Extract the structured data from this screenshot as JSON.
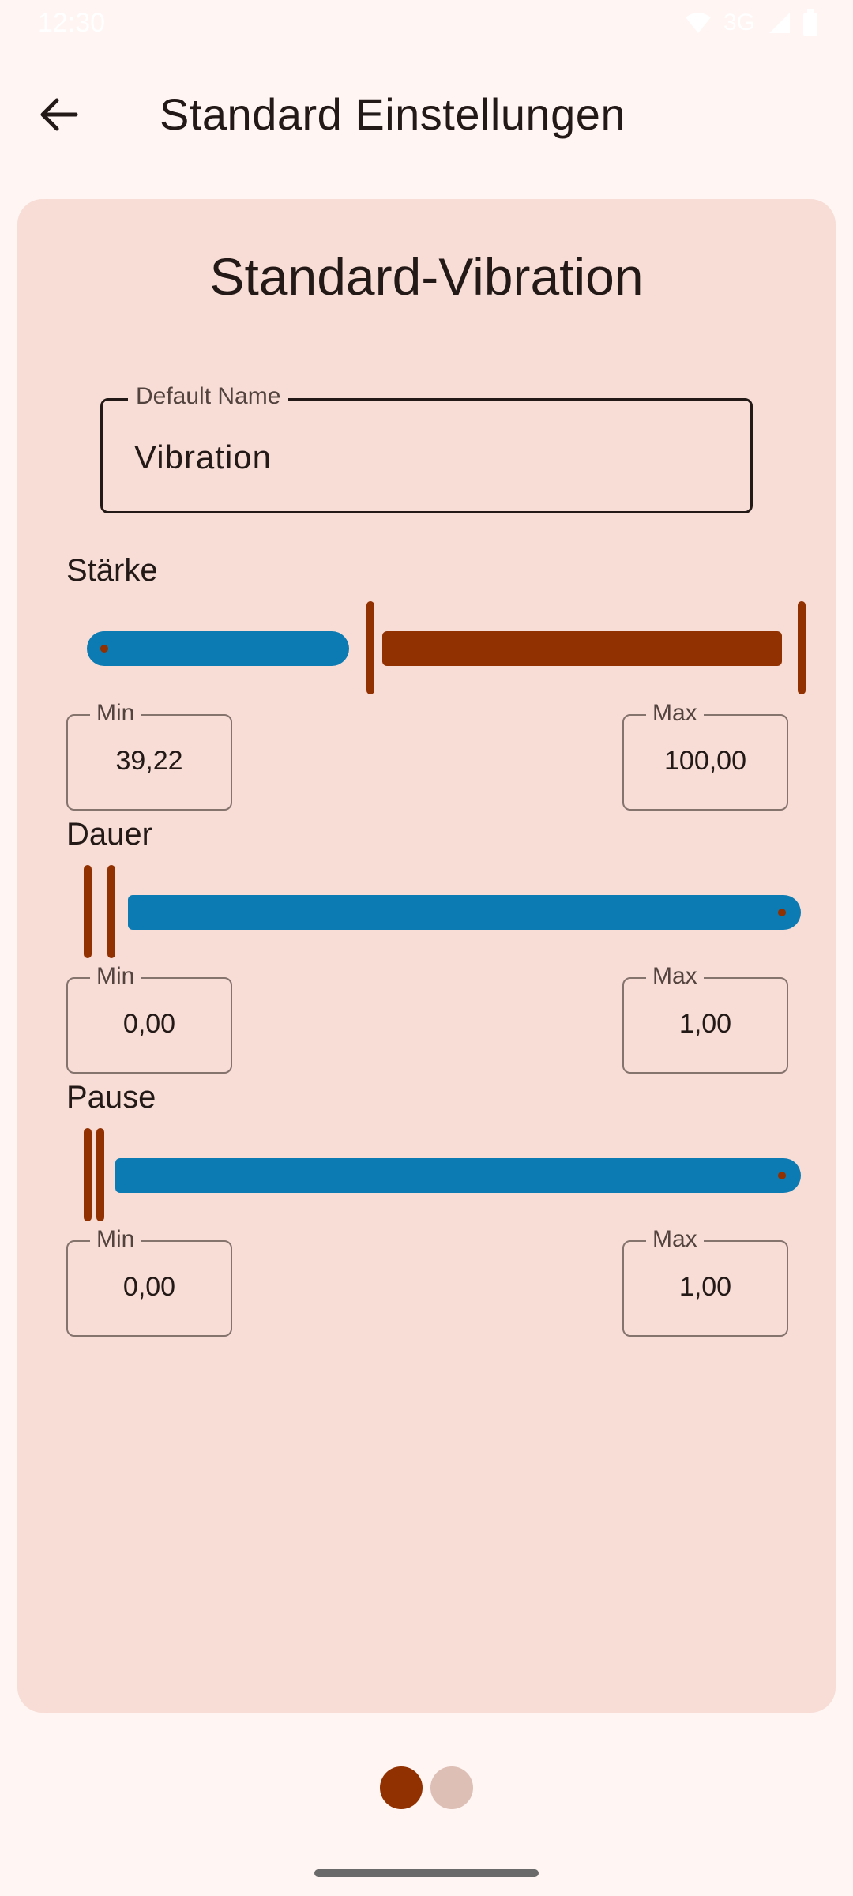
{
  "status_bar": {
    "time": "12:30",
    "network": "3G",
    "icons": [
      "wifi-icon",
      "signal-icon",
      "battery-icon"
    ]
  },
  "app_bar": {
    "title": "Standard Einstellungen",
    "back_icon": "arrow-left-icon"
  },
  "card": {
    "title": "Standard-Vibration",
    "name_field": {
      "label": "Default Name",
      "value": "Vibration"
    },
    "sections": [
      {
        "label": "Stärke",
        "min_label": "Min",
        "min_value": "39,22",
        "max_label": "Max",
        "max_value": "100,00",
        "range_fraction": [
          0.39,
          1.0
        ]
      },
      {
        "label": "Dauer",
        "min_label": "Min",
        "min_value": "0,00",
        "max_label": "Max",
        "max_value": "1,00",
        "range_fraction": [
          0.0,
          0.02
        ]
      },
      {
        "label": "Pause",
        "min_label": "Min",
        "min_value": "0,00",
        "max_label": "Max",
        "max_value": "1,00",
        "range_fraction": [
          0.0,
          0.01
        ]
      }
    ]
  },
  "pager": {
    "pages": 2,
    "active": 0
  },
  "colors": {
    "accent": "#913000",
    "track_active": "#0c7bb3",
    "card_bg": "#f8ddd6",
    "page_bg": "#fff5f3"
  }
}
